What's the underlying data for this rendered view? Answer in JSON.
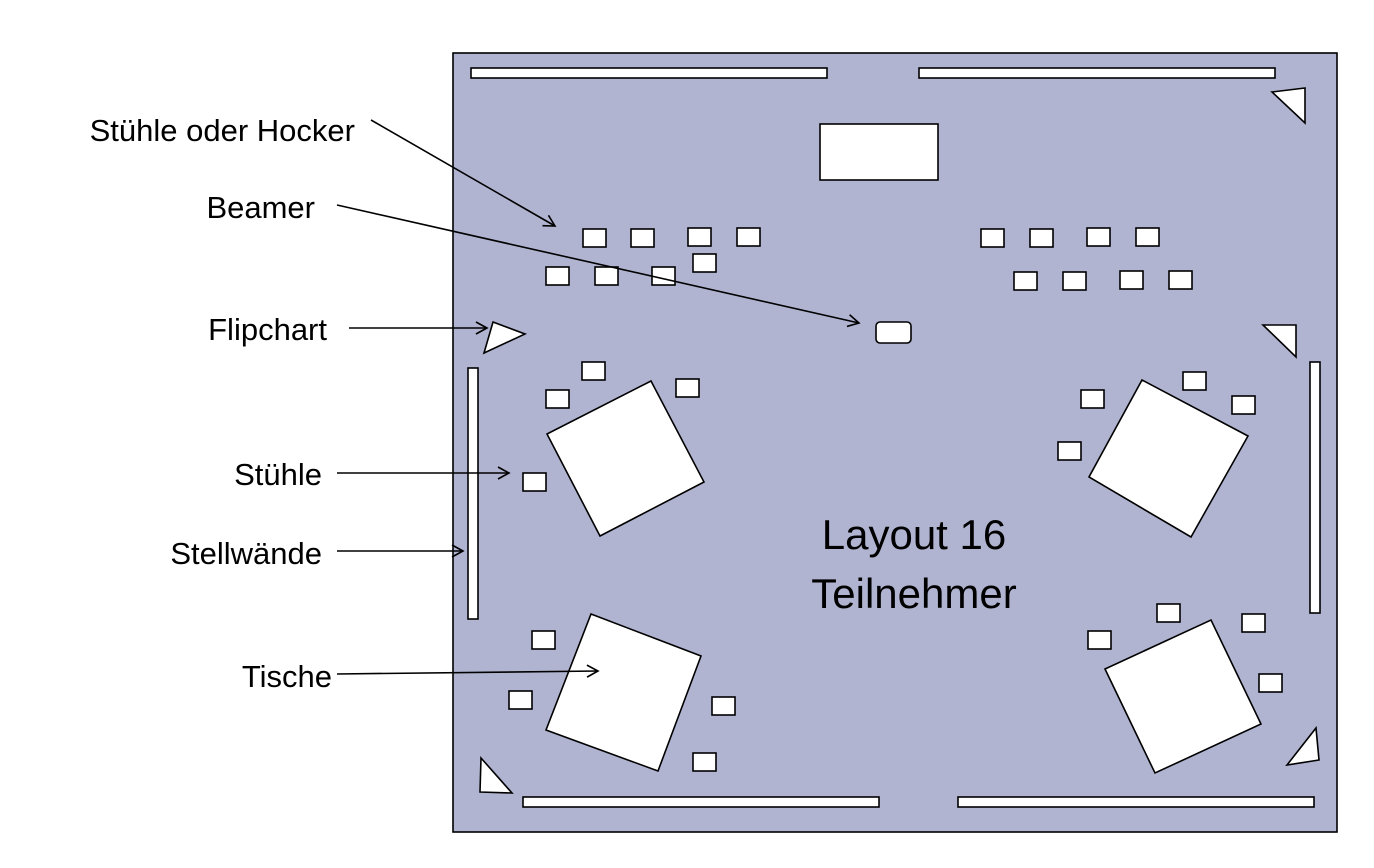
{
  "diagram": {
    "title_line1": "Layout 16",
    "title_line2": "Teilnehmer",
    "labels": {
      "stuehle_oder_hocker": "Stühle oder Hocker",
      "beamer": "Beamer",
      "flipchart": "Flipchart",
      "stuehle": "Stühle",
      "stellwaende": "Stellwände",
      "tische": "Tische"
    },
    "colors": {
      "room_fill": "#B0B4D1",
      "furniture_fill": "#FFFFFF",
      "outline": "#000000"
    }
  }
}
